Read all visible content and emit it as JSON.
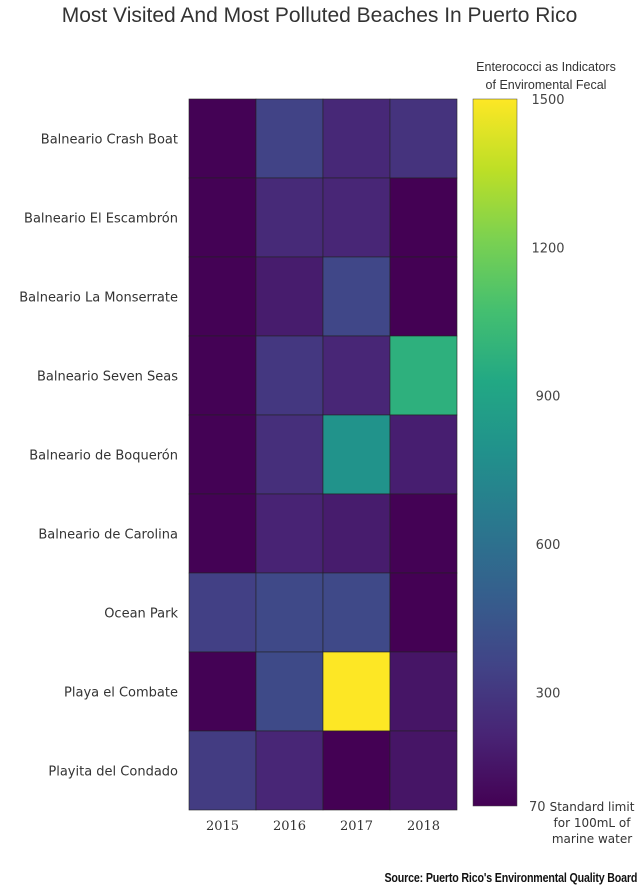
{
  "chart_data": {
    "type": "heatmap",
    "title": "Most Visited  And Most Polluted Beaches In Puerto Rico",
    "columns": [
      "2015",
      "2016",
      "2017",
      "2018"
    ],
    "rows": [
      "Balneario Crash Boat",
      "Balneario El Escambrón",
      "Balneario La Monserrate",
      "Balneario Seven Seas",
      "Balneario de Boquerón",
      "Balneario de Carolina",
      "Ocean Park",
      "Playa el Combate",
      "Playita del Condado"
    ],
    "values": [
      [
        75,
        350,
        230,
        280
      ],
      [
        75,
        240,
        220,
        70
      ],
      [
        75,
        180,
        370,
        70
      ],
      [
        75,
        300,
        220,
        980
      ],
      [
        75,
        260,
        800,
        190
      ],
      [
        75,
        210,
        180,
        75
      ],
      [
        340,
        380,
        380,
        70
      ],
      [
        75,
        390,
        1500,
        150
      ],
      [
        320,
        220,
        70,
        150
      ]
    ],
    "colorbar": {
      "title_lines": [
        "Enterococci as Indicators",
        "of Enviromental Fecal"
      ],
      "min": 70,
      "max": 1500,
      "ticks": [
        "1500",
        "1200",
        "900",
        "600",
        "300"
      ],
      "min_label": "70",
      "min_note": [
        "Standard limit",
        "for 100mL of",
        "marine water"
      ]
    },
    "source": "Source: Puerto Rico's Environmental Quality Board"
  }
}
